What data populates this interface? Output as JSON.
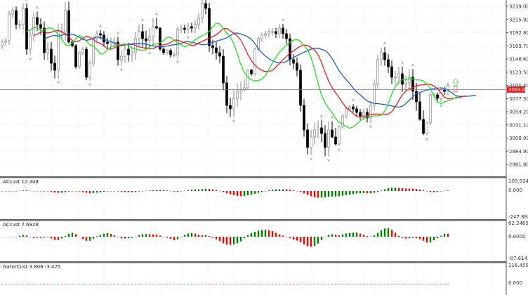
{
  "chart_data": {
    "type": "candlestick",
    "title": "",
    "current_price": 3093.04,
    "current_price_label": "3093.04",
    "y_ticks": [
      "3239.00",
      "3215.90",
      "3192.80",
      "3169.70",
      "3146.60",
      "3123.50",
      "3100.40",
      "3077.30",
      "3054.20",
      "3031.10",
      "3008.00",
      "2984.90",
      "2961.80"
    ],
    "ylim": [
      2950,
      3250
    ],
    "first_open": 3170.0,
    "closes": [
      3176.2,
      3178.6,
      3225.5,
      3231.6,
      3207.0,
      3207.0,
      3235.3,
      3163.9,
      3188.5,
      3219.3,
      3207.0,
      3200.8,
      3157.7,
      3163.9,
      3139.2,
      3126.9,
      3194.7,
      3194.7,
      3231.6,
      3176.2,
      3170.0,
      3133.1,
      3157.7,
      3163.9,
      3114.6,
      3139.2,
      3182.3,
      3191.0,
      3188.5,
      3176.2,
      3173.7,
      3176.2,
      3176.2,
      3145.4,
      3151.5,
      3163.9,
      3154.0,
      3157.7,
      3182.3,
      3194.7,
      3182.3,
      3178.6,
      3186.0,
      3203.3,
      3200.8,
      3163.9,
      3157.7,
      3161.4,
      3154.0,
      3154.0,
      3198.4,
      3200.8,
      3198.4,
      3203.3,
      3200.8,
      3207.0,
      3219.3,
      3243.9,
      3235.3,
      3170.0,
      3166.3,
      3157.7,
      3151.5,
      3104.7,
      3065.3,
      3059.1,
      3077.6,
      3089.9,
      3092.4,
      3096.1,
      3126.9,
      3120.7,
      3163.9,
      3182.3,
      3188.5,
      3191.0,
      3194.7,
      3194.7,
      3191.0,
      3200.8,
      3191.0,
      3182.3,
      3145.4,
      3139.2,
      3126.9,
      3065.3,
      3022.2,
      2991.4,
      3009.9,
      3022.2,
      3025.9,
      3016.0,
      2991.4,
      3022.2,
      3009.9,
      2997.5,
      3028.3,
      3046.8,
      3059.1,
      3062.8,
      3059.1,
      3053.0,
      3046.8,
      3053.0,
      3043.1,
      3065.3,
      3102.3,
      3145.4,
      3157.7,
      3145.4,
      3133.1,
      3114.6,
      3114.6,
      3120.7,
      3102.3,
      3104.7,
      3114.6,
      3089.9,
      3071.5,
      3040.7,
      3016.0,
      3034.5,
      3083.8,
      3083.8,
      3077.6,
      3092.4,
      3089.9,
      3099.8
    ],
    "indicators": [
      {
        "name": "Alligator jaw",
        "color": "#1e5ad6"
      },
      {
        "name": "Alligator teeth",
        "color": "#ee1c1c"
      },
      {
        "name": "Alligator lips",
        "color": "#22e01e"
      }
    ],
    "subpanels": [
      {
        "label": "ACcust 12.348",
        "type": "histogram",
        "top_label": "105.524",
        "mid_label": "0.000",
        "bottom_label": "-247.888"
      },
      {
        "label": "ACcust 7.6928",
        "type": "histogram",
        "top_label": "62.2469",
        "mid_label": "0.0000",
        "bottom_label": "-87.6143"
      },
      {
        "label": "GatorCust 3.806 -3.475",
        "type": "histogram",
        "top_label": "116.455",
        "mid_label": "0.000"
      }
    ],
    "colors": {
      "up": "#008000",
      "down": "#ff0000",
      "grid": "#d8d8d8",
      "price_line": "#e05050"
    }
  }
}
